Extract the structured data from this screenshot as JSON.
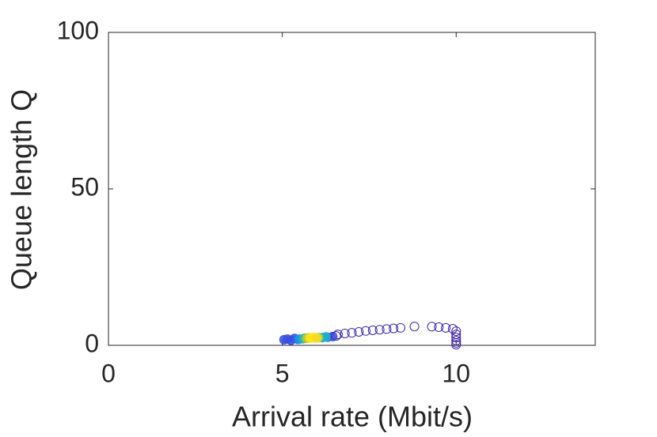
{
  "chart_data": {
    "type": "scatter",
    "xlabel": "Arrival rate (Mbit/s)",
    "ylabel": "Queue length Q",
    "xlim": [
      0,
      14
    ],
    "ylim": [
      0,
      100
    ],
    "xticks": [
      0,
      5,
      10
    ],
    "yticks": [
      0,
      50,
      100
    ],
    "series": [
      {
        "x": [
          6.6,
          6.8,
          7.0,
          7.2,
          7.4,
          7.6,
          7.8,
          8.0,
          8.2,
          8.4,
          8.8,
          9.3,
          9.5,
          9.7,
          9.9,
          10.0,
          10.0,
          10.0,
          10.0,
          10.0,
          10.0,
          5.05,
          5.15,
          5.25,
          5.35,
          5.45,
          6.3,
          6.45,
          6.55,
          5.5,
          6.15,
          6.25,
          5.6,
          5.65,
          6.05,
          5.7,
          5.75,
          5.8,
          5.85,
          5.9,
          5.95,
          6.0
        ],
        "values": [
          3.5,
          3.8,
          4.0,
          4.3,
          4.6,
          4.8,
          5.0,
          5.2,
          5.4,
          5.6,
          6.0,
          6.0,
          5.8,
          5.6,
          5.3,
          4.5,
          3.5,
          2.5,
          1.5,
          0.8,
          0.2,
          1.8,
          2.0,
          1.6,
          2.2,
          1.9,
          2.6,
          2.8,
          3.0,
          2.0,
          2.5,
          2.7,
          2.1,
          2.3,
          2.5,
          2.2,
          2.4,
          2.3,
          2.4,
          2.5,
          2.3,
          2.4
        ],
        "colors": [
          "#3d26a8",
          "#3d26a8",
          "#3d26a8",
          "#3d26a8",
          "#3d26a8",
          "#3d26a8",
          "#3d26a8",
          "#3d26a8",
          "#3d26a8",
          "#3d26a8",
          "#3d26a8",
          "#3d26a8",
          "#3d26a8",
          "#3d26a8",
          "#3d26a8",
          "#3d26a8",
          "#3d26a8",
          "#3d26a8",
          "#3d26a8",
          "#3d26a8",
          "#3d26a8",
          "#3850e0",
          "#3850e0",
          "#3850e0",
          "#3850e0",
          "#2f6ef0",
          "#2f6ef0",
          "#3850e0",
          "#3d26a8",
          "#1e96e0",
          "#1e96e0",
          "#20b2c6",
          "#20b2c6",
          "#2bbfa0",
          "#80c85c",
          "#a8c840",
          "#d8c430",
          "#f9e51b",
          "#f9e51b",
          "#f9e51b",
          "#f9e51b",
          "#f5d828"
        ]
      }
    ]
  }
}
